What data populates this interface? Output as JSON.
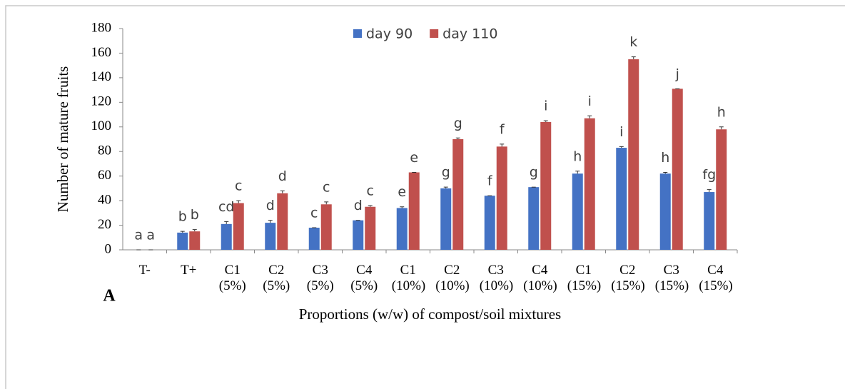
{
  "chart_data": {
    "type": "bar",
    "panel_label": "A",
    "xlabel": "Proportions (w/w) of compost/soil mixtures",
    "ylabel": "Number of mature fruits",
    "categories": [
      "T-",
      "T+",
      "C1 (5%)",
      "C2 (5%)",
      "C3 (5%)",
      "C4 (5%)",
      "C1 (10%)",
      "C2 (10%)",
      "C3 (10%)",
      "C4 (10%)",
      "C1 (15%)",
      "C2 (15%)",
      "C3 (15%)",
      "C4 (15%)"
    ],
    "series": [
      {
        "name": "day 90",
        "color": "#4472c4",
        "values": [
          0,
          14,
          21,
          22,
          18,
          24,
          34,
          50,
          44,
          51,
          62,
          83,
          62,
          47
        ],
        "errors": [
          0,
          1,
          2,
          2,
          0,
          0,
          1,
          1,
          0,
          0,
          2,
          1,
          1,
          2
        ],
        "letters": [
          "a",
          "b",
          "cd",
          "d",
          "c",
          "d",
          "e",
          "g",
          "f",
          "g",
          "h",
          "i",
          "h",
          "fg"
        ]
      },
      {
        "name": "day 110",
        "color": "#c0504d",
        "values": [
          0,
          15,
          38,
          46,
          37,
          35,
          63,
          90,
          84,
          104,
          107,
          155,
          131,
          98
        ],
        "errors": [
          0,
          1.5,
          2,
          2,
          2,
          1,
          0,
          1,
          2,
          1,
          2,
          2,
          0,
          2
        ],
        "letters": [
          "a",
          "b",
          "c",
          "d",
          "c",
          "c",
          "e",
          "g",
          "f",
          "i",
          "i",
          "k",
          "j",
          "h"
        ]
      }
    ],
    "ylim": [
      0,
      180
    ],
    "yticks": [
      0,
      20,
      40,
      60,
      80,
      100,
      120,
      140,
      160,
      180
    ],
    "grid": false,
    "legend": "top"
  }
}
